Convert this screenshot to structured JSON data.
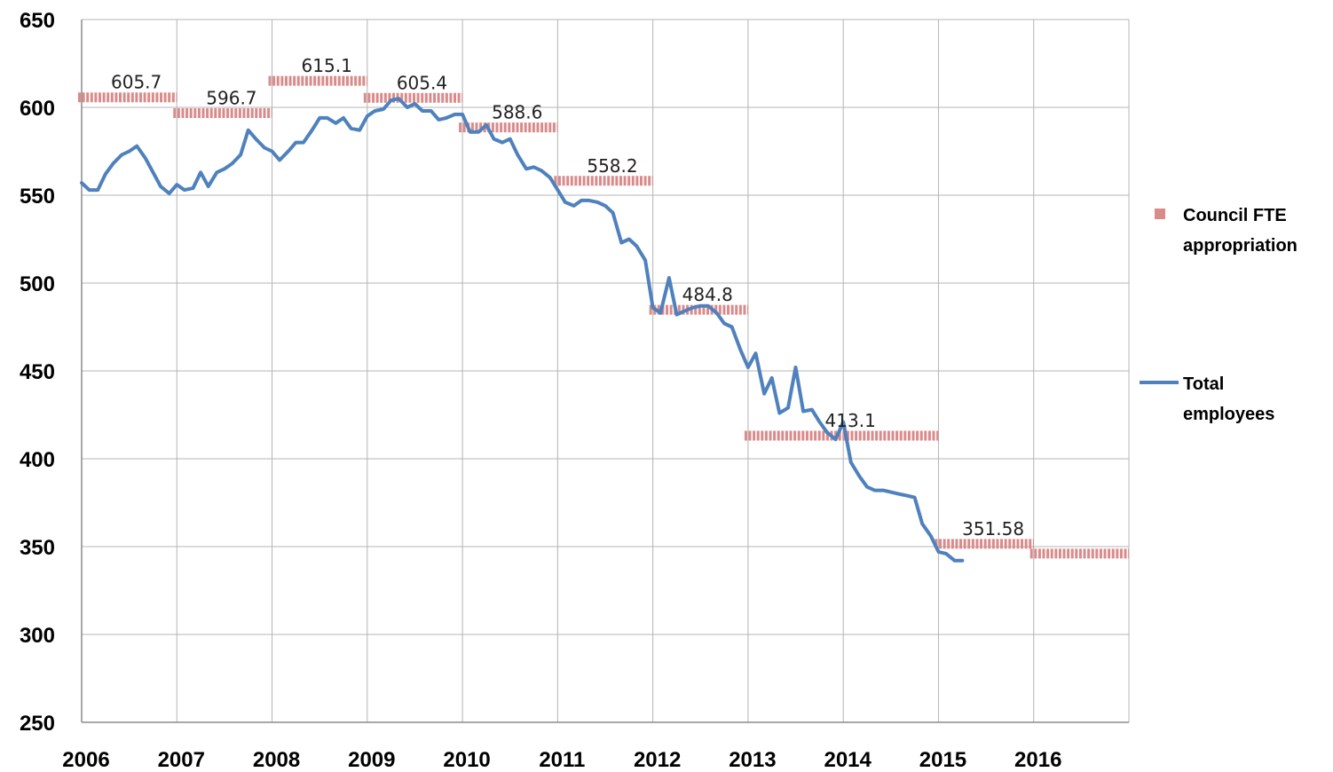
{
  "chart_data": {
    "type": "line",
    "x_range": [
      2006,
      2017
    ],
    "ylim": [
      250,
      650
    ],
    "y_ticks": [
      "250",
      "300",
      "350",
      "400",
      "450",
      "500",
      "550",
      "600",
      "650"
    ],
    "x_ticks": [
      "2006",
      "2007",
      "2008",
      "2009",
      "2010",
      "2011",
      "2012",
      "2013",
      "2014",
      "2015",
      "2016"
    ],
    "grid": true,
    "legend_position": "right",
    "series": [
      {
        "name": "Council FTE appropriation",
        "style": "step",
        "color": "#d98b8b",
        "segments": [
          {
            "x0": 2006,
            "x1": 2007,
            "y": 605.7,
            "label": "605.7"
          },
          {
            "x0": 2007,
            "x1": 2008,
            "y": 596.7,
            "label": "596.7"
          },
          {
            "x0": 2008,
            "x1": 2009,
            "y": 615.1,
            "label": "615.1"
          },
          {
            "x0": 2009,
            "x1": 2010,
            "y": 605.4,
            "label": "605.4"
          },
          {
            "x0": 2010,
            "x1": 2011,
            "y": 588.6,
            "label": "588.6"
          },
          {
            "x0": 2011,
            "x1": 2012,
            "y": 558.2,
            "label": "558.2"
          },
          {
            "x0": 2012,
            "x1": 2013,
            "y": 484.8,
            "label": "484.8"
          },
          {
            "x0": 2013,
            "x1": 2015,
            "y": 413.1,
            "label": "413.1"
          },
          {
            "x0": 2015,
            "x1": 2016,
            "y": 351.58,
            "label": "351.58"
          },
          {
            "x0": 2016,
            "x1": 2017,
            "y": 346,
            "label": ""
          }
        ]
      },
      {
        "name": "Total employees",
        "style": "line",
        "color": "#4f81bd",
        "points": [
          [
            2006.0,
            557
          ],
          [
            2006.08,
            553
          ],
          [
            2006.17,
            553
          ],
          [
            2006.25,
            562
          ],
          [
            2006.33,
            568
          ],
          [
            2006.42,
            573
          ],
          [
            2006.5,
            575
          ],
          [
            2006.58,
            578
          ],
          [
            2006.67,
            571
          ],
          [
            2006.75,
            563
          ],
          [
            2006.83,
            555
          ],
          [
            2006.92,
            551
          ],
          [
            2007.0,
            556
          ],
          [
            2007.08,
            553
          ],
          [
            2007.17,
            554
          ],
          [
            2007.25,
            563
          ],
          [
            2007.33,
            555
          ],
          [
            2007.42,
            563
          ],
          [
            2007.5,
            565
          ],
          [
            2007.58,
            568
          ],
          [
            2007.67,
            573
          ],
          [
            2007.75,
            587
          ],
          [
            2007.83,
            582
          ],
          [
            2007.92,
            577
          ],
          [
            2008.0,
            575
          ],
          [
            2008.08,
            570
          ],
          [
            2008.17,
            575
          ],
          [
            2008.25,
            580
          ],
          [
            2008.33,
            580
          ],
          [
            2008.42,
            587
          ],
          [
            2008.5,
            594
          ],
          [
            2008.58,
            594
          ],
          [
            2008.67,
            591
          ],
          [
            2008.75,
            594
          ],
          [
            2008.83,
            588
          ],
          [
            2008.92,
            587
          ],
          [
            2009.0,
            595
          ],
          [
            2009.08,
            598
          ],
          [
            2009.17,
            599
          ],
          [
            2009.25,
            604
          ],
          [
            2009.33,
            605
          ],
          [
            2009.42,
            600
          ],
          [
            2009.5,
            602
          ],
          [
            2009.58,
            598
          ],
          [
            2009.67,
            598
          ],
          [
            2009.75,
            593
          ],
          [
            2009.83,
            594
          ],
          [
            2009.92,
            596
          ],
          [
            2010.0,
            596
          ],
          [
            2010.08,
            586
          ],
          [
            2010.17,
            586
          ],
          [
            2010.25,
            590
          ],
          [
            2010.33,
            582
          ],
          [
            2010.42,
            580
          ],
          [
            2010.5,
            582
          ],
          [
            2010.58,
            573
          ],
          [
            2010.67,
            565
          ],
          [
            2010.75,
            566
          ],
          [
            2010.83,
            564
          ],
          [
            2010.92,
            560
          ],
          [
            2011.0,
            553
          ],
          [
            2011.08,
            546
          ],
          [
            2011.17,
            544
          ],
          [
            2011.25,
            547
          ],
          [
            2011.33,
            547
          ],
          [
            2011.42,
            546
          ],
          [
            2011.5,
            544
          ],
          [
            2011.58,
            540
          ],
          [
            2011.67,
            523
          ],
          [
            2011.75,
            525
          ],
          [
            2011.83,
            521
          ],
          [
            2011.92,
            513
          ],
          [
            2012.0,
            486
          ],
          [
            2012.08,
            483
          ],
          [
            2012.17,
            503
          ],
          [
            2012.25,
            482
          ],
          [
            2012.33,
            484
          ],
          [
            2012.42,
            486
          ],
          [
            2012.5,
            487
          ],
          [
            2012.58,
            487
          ],
          [
            2012.67,
            483
          ],
          [
            2012.75,
            477
          ],
          [
            2012.83,
            475
          ],
          [
            2012.92,
            462
          ],
          [
            2013.0,
            452
          ],
          [
            2013.08,
            460
          ],
          [
            2013.17,
            437
          ],
          [
            2013.25,
            446
          ],
          [
            2013.33,
            426
          ],
          [
            2013.42,
            429
          ],
          [
            2013.5,
            452
          ],
          [
            2013.58,
            427
          ],
          [
            2013.67,
            428
          ],
          [
            2013.75,
            421
          ],
          [
            2013.83,
            415
          ],
          [
            2013.92,
            411
          ],
          [
            2014.0,
            421
          ],
          [
            2014.08,
            398
          ],
          [
            2014.17,
            390
          ],
          [
            2014.25,
            384
          ],
          [
            2014.33,
            382
          ],
          [
            2014.42,
            382
          ],
          [
            2014.5,
            381
          ],
          [
            2014.58,
            380
          ],
          [
            2014.67,
            379
          ],
          [
            2014.75,
            378
          ],
          [
            2014.83,
            363
          ],
          [
            2014.92,
            356
          ],
          [
            2015.0,
            347
          ],
          [
            2015.08,
            346
          ],
          [
            2015.17,
            342
          ],
          [
            2015.25,
            342
          ]
        ]
      }
    ]
  }
}
